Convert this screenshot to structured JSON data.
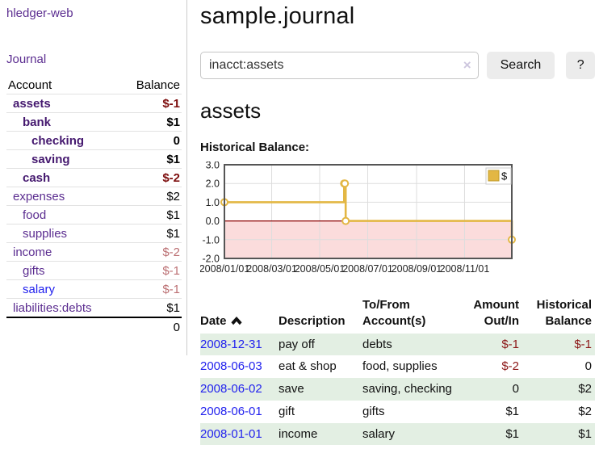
{
  "app": {
    "title": "hledger-web"
  },
  "sidebar": {
    "journal_link": "Journal",
    "headers": {
      "account": "Account",
      "balance": "Balance"
    },
    "accounts": [
      {
        "name": "assets",
        "balance": "$-1"
      },
      {
        "name": "bank",
        "balance": "$1"
      },
      {
        "name": "checking",
        "balance": "0"
      },
      {
        "name": "saving",
        "balance": "$1"
      },
      {
        "name": "cash",
        "balance": "$-2"
      },
      {
        "name": "expenses",
        "balance": "$2"
      },
      {
        "name": "food",
        "balance": "$1"
      },
      {
        "name": "supplies",
        "balance": "$1"
      },
      {
        "name": "income",
        "balance": "$-2"
      },
      {
        "name": "gifts",
        "balance": "$-1"
      },
      {
        "name": "salary",
        "balance": "$-1"
      },
      {
        "name": "liabilities:debts",
        "balance": "$1"
      }
    ],
    "total": "0"
  },
  "header": {
    "title": "sample.journal"
  },
  "search": {
    "value": "inacct:assets",
    "clear_icon": "×",
    "button_label": "Search",
    "help_label": "?"
  },
  "account_page": {
    "title": "assets",
    "chart_heading": "Historical Balance:"
  },
  "chart_data": {
    "type": "line",
    "step": true,
    "title": "Historical Balance:",
    "series": [
      {
        "name": "$",
        "points": [
          [
            "2008-01-01",
            1
          ],
          [
            "2008-06-01",
            2
          ],
          [
            "2008-06-02",
            2
          ],
          [
            "2008-06-03",
            0
          ],
          [
            "2008-12-31",
            -1
          ]
        ]
      }
    ],
    "xrange": [
      "2008-01-01",
      "2008-12-31"
    ],
    "ylim": [
      -2.0,
      3.0
    ],
    "yticks": [
      3.0,
      2.0,
      1.0,
      0.0,
      -1.0,
      -2.0
    ],
    "xticks": [
      "2008/01/01",
      "2008/03/01",
      "2008/05/01",
      "2008/07/01",
      "2008/09/01",
      "2008/11/01"
    ],
    "legend": [
      "$"
    ],
    "legend_position": "top-right",
    "grid": true,
    "colors": {
      "line": "#e3b744",
      "marker_fill": "#ffffff",
      "negative_fill": "#fbdcdc",
      "zero_line": "#8b0000",
      "grid": "#dddddd",
      "frame": "#555555"
    }
  },
  "register": {
    "headers": {
      "date": "Date",
      "description": "Description",
      "account_l1": "To/From",
      "account_l2": "Account(s)",
      "amount_l1": "Amount",
      "amount_l2": "Out/In",
      "balance_l1": "Historical",
      "balance_l2": "Balance"
    },
    "rows": [
      {
        "date": "2008-12-31",
        "description": "pay off",
        "accounts": "debts",
        "amount": "$-1",
        "balance": "$-1"
      },
      {
        "date": "2008-06-03",
        "description": "eat & shop",
        "accounts": "food, supplies",
        "amount": "$-2",
        "balance": "0"
      },
      {
        "date": "2008-06-02",
        "description": "save",
        "accounts": "saving, checking",
        "amount": "0",
        "balance": "$2"
      },
      {
        "date": "2008-06-01",
        "description": "gift",
        "accounts": "gifts",
        "amount": "$1",
        "balance": "$2"
      },
      {
        "date": "2008-01-01",
        "description": "income",
        "accounts": "salary",
        "amount": "$1",
        "balance": "$1"
      }
    ]
  }
}
